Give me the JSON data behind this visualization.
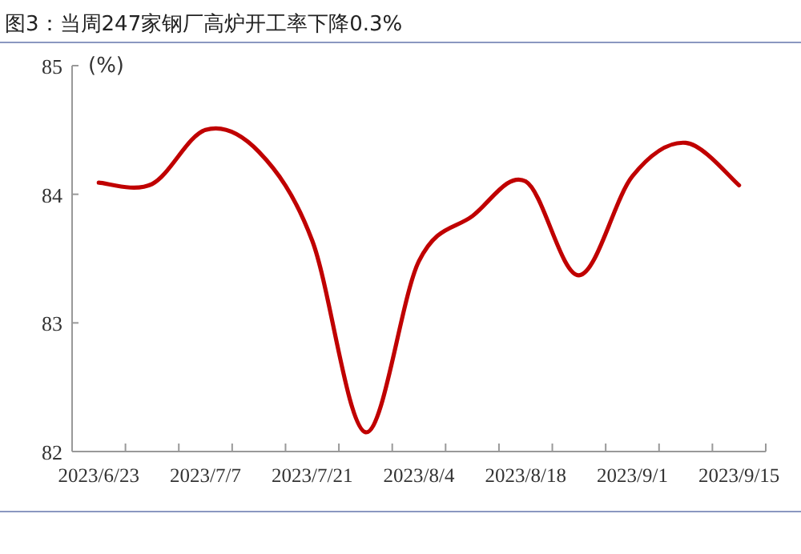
{
  "chart_data": {
    "type": "line",
    "title": "图3：当周247家钢厂高炉开工率下降0.3%",
    "ylabel": "(%)",
    "categories": [
      "2023/6/23",
      null,
      "2023/7/7",
      null,
      "2023/7/21",
      null,
      "2023/8/4",
      null,
      "2023/8/18",
      null,
      "2023/9/1",
      null,
      "2023/9/15"
    ],
    "series": [
      {
        "color": "#c00000",
        "values": [
          84.09,
          84.08,
          84.5,
          84.33,
          83.64,
          82.15,
          83.48,
          83.83,
          84.1,
          83.37,
          84.14,
          84.4,
          84.07
        ]
      }
    ],
    "ylim": [
      82,
      85
    ],
    "yticks": [
      82,
      83,
      84,
      85
    ],
    "grid": false,
    "marker": "none",
    "line_style": "solid"
  }
}
